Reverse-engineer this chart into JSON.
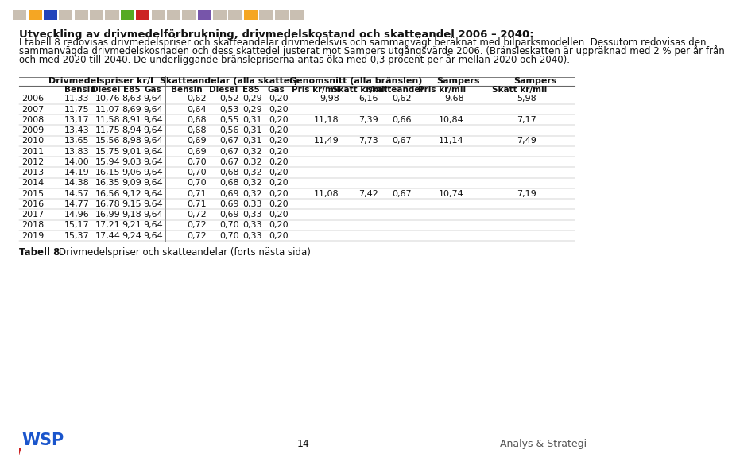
{
  "title_bold": "Utveckling av drivmedelförbrukning, drivmedelskostand och skatteandel 2006 – 2040:",
  "body_lines": [
    "I tabell 8 redovisas drivmedelspriser och skatteandelar drivmedelsvis och sammanvägt beräknat med bilparksmodellen. Dessutom redovisas den",
    "sammanvägda drivmedelskosnaden och dess skattedel justerat mot Sampers utgångsvärde 2006. (Bränsleskatten är uppräknad med 2 % per år från",
    "och med 2020 till 2040. De underliggande bränslepriserna antas öka med 0,3 procent per år mellan 2020 och 2040)."
  ],
  "data": [
    [
      2006,
      "11,33",
      "10,76",
      "8,63",
      "9,64",
      "0,62",
      "0,52",
      "0,29",
      "0,20",
      "9,98",
      "6,16",
      "0,62",
      "9,68",
      "5,98"
    ],
    [
      2007,
      "11,75",
      "11,07",
      "8,69",
      "9,64",
      "0,64",
      "0,53",
      "0,29",
      "0,20",
      "",
      "",
      "",
      "",
      ""
    ],
    [
      2008,
      "13,17",
      "11,58",
      "8,91",
      "9,64",
      "0,68",
      "0,55",
      "0,31",
      "0,20",
      "11,18",
      "7,39",
      "0,66",
      "10,84",
      "7,17"
    ],
    [
      2009,
      "13,43",
      "11,75",
      "8,94",
      "9,64",
      "0,68",
      "0,56",
      "0,31",
      "0,20",
      "",
      "",
      "",
      "",
      ""
    ],
    [
      2010,
      "13,65",
      "15,56",
      "8,98",
      "9,64",
      "0,69",
      "0,67",
      "0,31",
      "0,20",
      "11,49",
      "7,73",
      "0,67",
      "11,14",
      "7,49"
    ],
    [
      2011,
      "13,83",
      "15,75",
      "9,01",
      "9,64",
      "0,69",
      "0,67",
      "0,32",
      "0,20",
      "",
      "",
      "",
      "",
      ""
    ],
    [
      2012,
      "14,00",
      "15,94",
      "9,03",
      "9,64",
      "0,70",
      "0,67",
      "0,32",
      "0,20",
      "",
      "",
      "",
      "",
      ""
    ],
    [
      2013,
      "14,19",
      "16,15",
      "9,06",
      "9,64",
      "0,70",
      "0,68",
      "0,32",
      "0,20",
      "",
      "",
      "",
      "",
      ""
    ],
    [
      2014,
      "14,38",
      "16,35",
      "9,09",
      "9,64",
      "0,70",
      "0,68",
      "0,32",
      "0,20",
      "",
      "",
      "",
      "",
      ""
    ],
    [
      2015,
      "14,57",
      "16,56",
      "9,12",
      "9,64",
      "0,71",
      "0,69",
      "0,32",
      "0,20",
      "11,08",
      "7,42",
      "0,67",
      "10,74",
      "7,19"
    ],
    [
      2016,
      "14,77",
      "16,78",
      "9,15",
      "9,64",
      "0,71",
      "0,69",
      "0,33",
      "0,20",
      "",
      "",
      "",
      "",
      ""
    ],
    [
      2017,
      "14,96",
      "16,99",
      "9,18",
      "9,64",
      "0,72",
      "0,69",
      "0,33",
      "0,20",
      "",
      "",
      "",
      "",
      ""
    ],
    [
      2018,
      "15,17",
      "17,21",
      "9,21",
      "9,64",
      "0,72",
      "0,70",
      "0,33",
      "0,20",
      "",
      "",
      "",
      "",
      ""
    ],
    [
      2019,
      "15,37",
      "17,44",
      "9,24",
      "9,64",
      "0,72",
      "0,70",
      "0,33",
      "0,20",
      "",
      "",
      "",
      "",
      ""
    ]
  ],
  "caption_bold": "Tabell 8.",
  "caption_text": "Drivmedelspriser och skatteandelar (forts nästa sida)",
  "footer_page": "14",
  "footer_right": "Analys & Strategi",
  "bg_color": "#ffffff",
  "bar_colors": [
    "#c9bfb2",
    "#f5a623",
    "#2244bb",
    "#c9bfb2",
    "#c9bfb2",
    "#c9bfb2",
    "#c9bfb2",
    "#55aa22",
    "#cc2222",
    "#c9bfb2",
    "#c9bfb2",
    "#c9bfb2",
    "#7755aa",
    "#c9bfb2",
    "#c9bfb2",
    "#f5a623",
    "#c9bfb2",
    "#c9bfb2",
    "#c9bfb2"
  ],
  "text_color": "#111111",
  "line_color": "#666666",
  "light_line": "#aaaaaa"
}
